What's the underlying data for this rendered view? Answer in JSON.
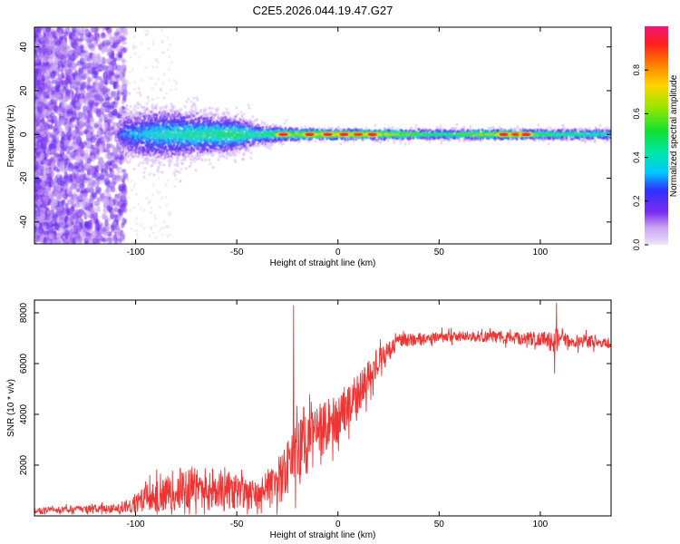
{
  "title": "C2E5.2026.044.19.47.G27",
  "colors": {
    "line": "#ee3333",
    "axis": "#000000"
  },
  "chart_data": [
    {
      "type": "heatmap",
      "xlabel": "Height of straight line (km)",
      "ylabel": "Frequency (Hz)",
      "xlim": [
        -150,
        135
      ],
      "ylim": [
        -50,
        49
      ],
      "xticks": [
        {
          "v": -100,
          "label": "-100"
        },
        {
          "v": -50,
          "label": "-50"
        },
        {
          "v": 0,
          "label": "0"
        },
        {
          "v": 50,
          "label": "50"
        },
        {
          "v": 100,
          "label": "100"
        }
      ],
      "yticks": [
        {
          "v": 40,
          "label": "40"
        },
        {
          "v": 20,
          "label": "20"
        },
        {
          "v": 0,
          "label": "0"
        },
        {
          "v": -20,
          "label": "-20"
        },
        {
          "v": -40,
          "label": "-40"
        }
      ],
      "colorbar": {
        "label": "Normalized spectral amplitude",
        "range": [
          0,
          1
        ],
        "ticks": [
          {
            "v": 0.0,
            "label": "0.0"
          },
          {
            "v": 0.2,
            "label": "0.2"
          },
          {
            "v": 0.4,
            "label": "0.4"
          },
          {
            "v": 0.6,
            "label": "0.6"
          },
          {
            "v": 0.8,
            "label": "0.8"
          }
        ]
      },
      "band_profile": [
        {
          "x": -150,
          "width": 0,
          "amp": 0.15
        },
        {
          "x": -110,
          "width": 0,
          "amp": 0.2
        },
        {
          "x": -105,
          "width": 12,
          "amp": 0.3
        },
        {
          "x": -90,
          "width": 14,
          "amp": 0.4
        },
        {
          "x": -70,
          "width": 12,
          "amp": 0.45
        },
        {
          "x": -50,
          "width": 10,
          "amp": 0.5
        },
        {
          "x": -40,
          "width": 6,
          "amp": 0.45
        },
        {
          "x": -25,
          "width": 4,
          "amp": 0.6
        },
        {
          "x": 0,
          "width": 3,
          "amp": 0.8
        },
        {
          "x": 20,
          "width": 3,
          "amp": 0.75
        },
        {
          "x": 50,
          "width": 3,
          "amp": 0.5
        },
        {
          "x": 80,
          "width": 3,
          "amp": 0.7
        },
        {
          "x": 100,
          "width": 3,
          "amp": 0.55
        },
        {
          "x": 135,
          "width": 3,
          "amp": 0.45
        }
      ],
      "peaks": [
        {
          "x": -27,
          "amp": 0.95
        },
        {
          "x": -14,
          "amp": 0.95
        },
        {
          "x": -5,
          "amp": 0.95
        },
        {
          "x": 3,
          "amp": 0.95
        },
        {
          "x": 10,
          "amp": 0.9
        },
        {
          "x": 17,
          "amp": 0.95
        },
        {
          "x": 82,
          "amp": 0.95
        },
        {
          "x": 88,
          "amp": 0.9
        },
        {
          "x": 93,
          "amp": 0.95
        }
      ]
    },
    {
      "type": "line",
      "xlabel": "Height of straight line (km)",
      "ylabel": "SNR (10 * v/v)",
      "xlim": [
        -150,
        135
      ],
      "ylim": [
        0,
        8500
      ],
      "xticks": [
        {
          "v": -100,
          "label": "-100"
        },
        {
          "v": -50,
          "label": "-50"
        },
        {
          "v": 0,
          "label": "0"
        },
        {
          "v": 50,
          "label": "50"
        },
        {
          "v": 100,
          "label": "100"
        }
      ],
      "yticks": [
        {
          "v": 2000,
          "label": "2000"
        },
        {
          "v": 4000,
          "label": "4000"
        },
        {
          "v": 6000,
          "label": "6000"
        },
        {
          "v": 8000,
          "label": "8000"
        }
      ],
      "series": [
        {
          "envelope": [
            {
              "x": -150,
              "mean": 200,
              "noise": 150
            },
            {
              "x": -110,
              "mean": 300,
              "noise": 200
            },
            {
              "x": -100,
              "mean": 500,
              "noise": 500
            },
            {
              "x": -85,
              "mean": 900,
              "noise": 900
            },
            {
              "x": -75,
              "mean": 1100,
              "noise": 1100
            },
            {
              "x": -55,
              "mean": 1000,
              "noise": 1000
            },
            {
              "x": -40,
              "mean": 800,
              "noise": 700
            },
            {
              "x": -30,
              "mean": 1300,
              "noise": 1200
            },
            {
              "x": -20,
              "mean": 2500,
              "noise": 1500
            },
            {
              "x": -10,
              "mean": 3200,
              "noise": 1500
            },
            {
              "x": 0,
              "mean": 3800,
              "noise": 1000
            },
            {
              "x": 10,
              "mean": 4800,
              "noise": 1000
            },
            {
              "x": 20,
              "mean": 6000,
              "noise": 700
            },
            {
              "x": 30,
              "mean": 6900,
              "noise": 350
            },
            {
              "x": 60,
              "mean": 7100,
              "noise": 250
            },
            {
              "x": 90,
              "mean": 7000,
              "noise": 300
            },
            {
              "x": 110,
              "mean": 6950,
              "noise": 400
            },
            {
              "x": 135,
              "mean": 6800,
              "noise": 250
            }
          ],
          "spikes": [
            {
              "x": -22,
              "y": 8300
            },
            {
              "x": -21,
              "y": 300
            },
            {
              "x": 108,
              "y": 8400
            },
            {
              "x": 107,
              "y": 5600
            }
          ]
        }
      ]
    }
  ]
}
